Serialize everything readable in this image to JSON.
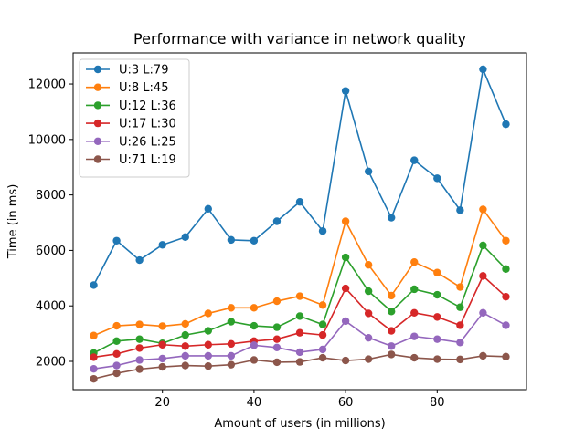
{
  "chart_data": {
    "type": "line",
    "title": "Performance with variance in network quality",
    "xlabel": "Amount of users (in millions)",
    "ylabel": "Time (in ms)",
    "xlim": [
      0.5,
      99.5
    ],
    "ylim": [
      980,
      13120
    ],
    "xticks": [
      20,
      40,
      60,
      80
    ],
    "yticks": [
      2000,
      4000,
      6000,
      8000,
      10000,
      12000
    ],
    "legend_position": "top-left",
    "grid": false,
    "x": [
      5,
      10,
      15,
      20,
      25,
      30,
      35,
      40,
      45,
      50,
      55,
      60,
      65,
      70,
      75,
      80,
      85,
      90,
      95
    ],
    "series": [
      {
        "name": "U:3 L:79",
        "color": "#1f77b4",
        "values": [
          4750,
          6350,
          5650,
          6200,
          6480,
          7500,
          6380,
          6350,
          7050,
          7750,
          6700,
          11750,
          8850,
          7180,
          9250,
          8600,
          7450,
          12530,
          10550
        ]
      },
      {
        "name": "U:8 L:45",
        "color": "#ff7f0e",
        "values": [
          2930,
          3280,
          3330,
          3270,
          3350,
          3730,
          3930,
          3930,
          4170,
          4350,
          4030,
          7050,
          5480,
          4370,
          5580,
          5200,
          4680,
          7480,
          6350
        ]
      },
      {
        "name": "U:12 L:36",
        "color": "#2ca02c",
        "values": [
          2300,
          2730,
          2800,
          2650,
          2950,
          3100,
          3430,
          3280,
          3230,
          3630,
          3330,
          5750,
          4530,
          3800,
          4600,
          4400,
          3950,
          6180,
          5330
        ]
      },
      {
        "name": "U:17 L:30",
        "color": "#d62728",
        "values": [
          2150,
          2270,
          2480,
          2600,
          2550,
          2600,
          2630,
          2730,
          2800,
          3030,
          2950,
          4630,
          3730,
          3100,
          3750,
          3600,
          3300,
          5080,
          4330
        ]
      },
      {
        "name": "U:26 L:25",
        "color": "#9467bd",
        "values": [
          1730,
          1850,
          2050,
          2100,
          2200,
          2200,
          2200,
          2580,
          2500,
          2330,
          2430,
          3450,
          2850,
          2550,
          2900,
          2800,
          2680,
          3750,
          3300
        ]
      },
      {
        "name": "U:71 L:19",
        "color": "#8c564b",
        "values": [
          1370,
          1570,
          1720,
          1800,
          1850,
          1830,
          1880,
          2050,
          1970,
          1980,
          2130,
          2030,
          2080,
          2250,
          2130,
          2080,
          2070,
          2200,
          2170
        ]
      }
    ]
  }
}
